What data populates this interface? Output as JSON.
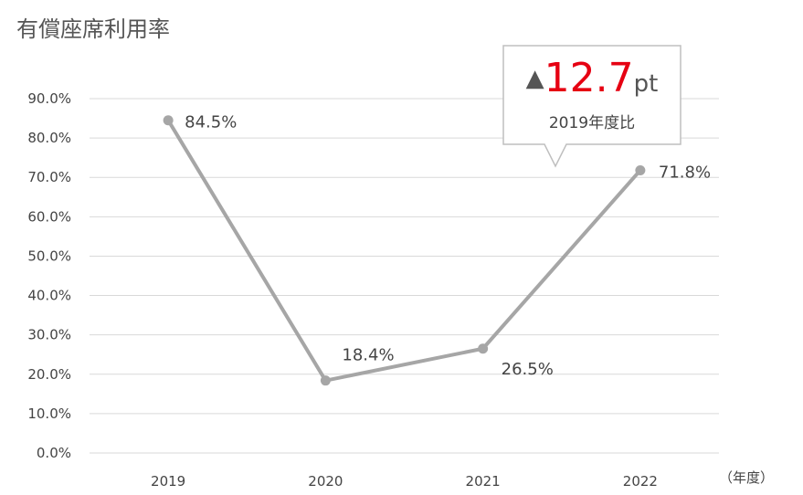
{
  "title": "有償座席利用率",
  "chart_data": {
    "type": "line",
    "categories": [
      "2019",
      "2020",
      "2021",
      "2022"
    ],
    "series": [
      {
        "values": [
          84.5,
          18.4,
          26.5,
          71.8
        ]
      }
    ],
    "data_labels": [
      "84.5%",
      "18.4%",
      "26.5%",
      "71.8%"
    ],
    "ylim": [
      0,
      90
    ],
    "yticks": [
      0,
      10,
      20,
      30,
      40,
      50,
      60,
      70,
      80,
      90
    ],
    "ytick_labels": [
      "0.0%",
      "10.0%",
      "20.0%",
      "30.0%",
      "40.0%",
      "50.0%",
      "60.0%",
      "70.0%",
      "80.0%",
      "90.0%"
    ],
    "xunit": "（年度）",
    "grid": true,
    "line_color": "#a6a6a6",
    "grid_color": "#d9d9d9"
  },
  "callout": {
    "arrow": "▲",
    "value": "12.7",
    "unit": "pt",
    "subtitle": "2019年度比",
    "value_color": "#e60012"
  }
}
